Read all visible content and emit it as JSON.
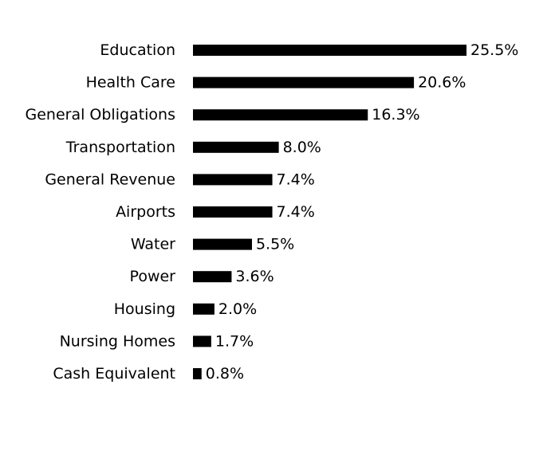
{
  "chart_data": {
    "type": "bar",
    "orientation": "horizontal",
    "categories": [
      "Education",
      "Health Care",
      "General Obligations",
      "Transportation",
      "General Revenue",
      "Airports",
      "Water",
      "Power",
      "Housing",
      "Nursing Homes",
      "Cash Equivalent"
    ],
    "values": [
      25.5,
      20.6,
      16.3,
      8.0,
      7.4,
      7.4,
      5.5,
      3.6,
      2.0,
      1.7,
      0.8
    ],
    "value_labels": [
      "25.5%",
      "20.6%",
      "16.3%",
      "8.0%",
      "7.4%",
      "7.4%",
      "5.5%",
      "3.6%",
      "2.0%",
      "1.7%",
      "0.8%"
    ],
    "bar_color": "#000000",
    "xlim": [
      0,
      25.5
    ],
    "grid": false,
    "axes_visible": false
  }
}
